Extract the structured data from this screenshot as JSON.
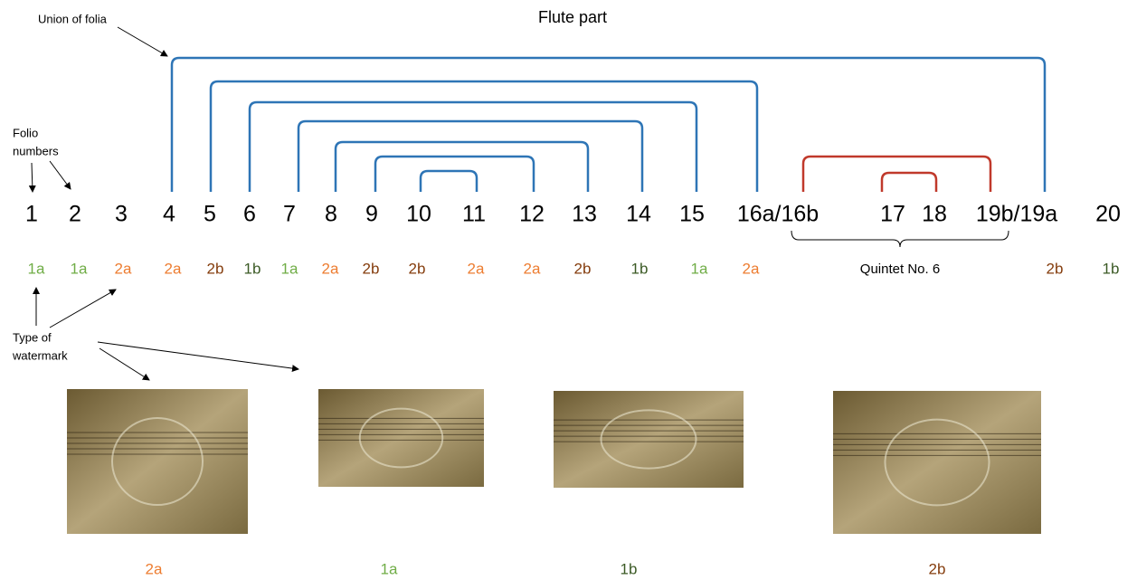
{
  "title": "Flute part",
  "annotations": {
    "union_of_folia": "Union of folia",
    "folio_numbers": [
      "Folio",
      "numbers"
    ],
    "type_of_watermark": [
      "Type of",
      "watermark"
    ]
  },
  "folios": [
    "1",
    "2",
    "3",
    "4",
    "5",
    "6",
    "7",
    "8",
    "9",
    "10",
    "11",
    "12",
    "13",
    "14",
    "15",
    "16a/16b",
    "17",
    "18",
    "19b/19a",
    "20"
  ],
  "watermarks": [
    "1a",
    "1a",
    "2a",
    "2a",
    "2b",
    "1b",
    "1a",
    "2a",
    "2b",
    "2b",
    "2a",
    "2a",
    "2b",
    "1b",
    "1a",
    "2a",
    "2b",
    "1b"
  ],
  "watermark_colors": {
    "1a": "#70ad47",
    "1b": "#3b5a25",
    "2a": "#ed7d31",
    "2b": "#843c0c"
  },
  "bracket_colors": {
    "flute": "#2e75b6",
    "quintet": "#c0392b"
  },
  "quintet_label": "Quintet No. 6",
  "images": [
    {
      "caption": "2a"
    },
    {
      "caption": "1a"
    },
    {
      "caption": "1b"
    },
    {
      "caption": "2b"
    }
  ]
}
